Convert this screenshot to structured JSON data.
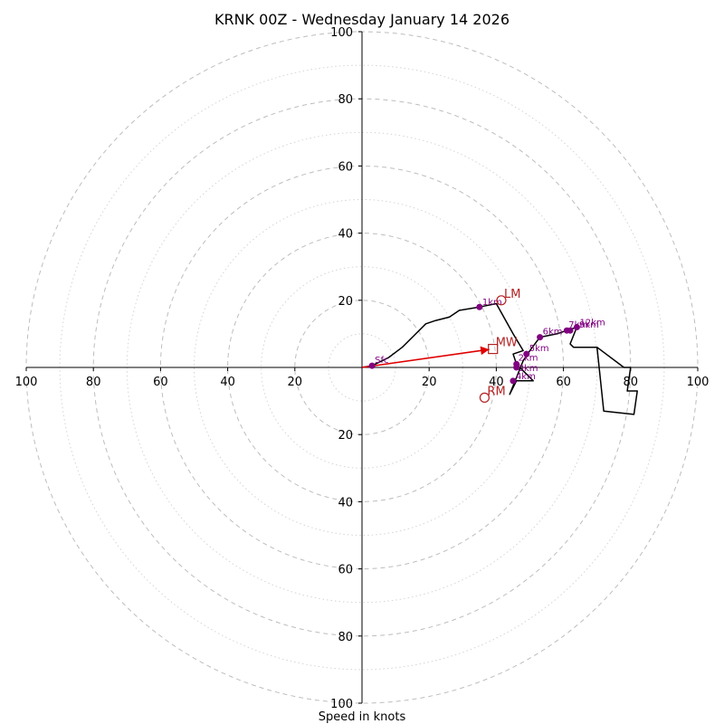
{
  "chart_data": {
    "type": "hodograph",
    "title": "KRNK 00Z - Wednesday January 14 2026",
    "xlabel": "Speed in knots",
    "rings": [
      20,
      40,
      60,
      80,
      100
    ],
    "minor_rings": [
      10,
      30,
      50,
      70,
      90
    ],
    "axis_range": [
      -100,
      100
    ],
    "ticks": {
      "left": [
        "100",
        "80",
        "60",
        "40",
        "20"
      ],
      "right": [
        "20",
        "40",
        "60",
        "80",
        "100"
      ],
      "top": [
        "100",
        "80",
        "60",
        "40",
        "20"
      ],
      "bottom": [
        "20",
        "40",
        "60",
        "80",
        "100"
      ]
    },
    "hodograph_trace": [
      [
        0,
        0
      ],
      [
        3,
        0.5
      ],
      [
        8,
        3
      ],
      [
        12,
        6
      ],
      [
        16,
        10
      ],
      [
        19,
        13
      ],
      [
        22,
        14
      ],
      [
        26,
        15
      ],
      [
        29,
        17
      ],
      [
        35,
        18
      ],
      [
        40,
        19
      ],
      [
        45,
        10
      ],
      [
        48,
        5
      ],
      [
        45,
        4
      ],
      [
        46,
        1
      ],
      [
        51,
        -4
      ],
      [
        46,
        -4
      ],
      [
        44,
        -8
      ],
      [
        46,
        -3
      ],
      [
        48,
        2
      ],
      [
        50,
        5
      ],
      [
        53,
        9
      ],
      [
        58,
        10
      ],
      [
        61,
        11
      ],
      [
        64,
        12
      ],
      [
        62,
        7
      ],
      [
        63,
        6
      ],
      [
        70,
        6
      ],
      [
        78,
        0
      ],
      [
        80,
        0
      ],
      [
        79,
        -7
      ],
      [
        82,
        -7
      ],
      [
        81,
        -14
      ],
      [
        72,
        -13
      ],
      [
        70,
        6
      ]
    ],
    "height_points": [
      {
        "label": "Sfc",
        "u": 3,
        "v": 0.5
      },
      {
        "label": "1km",
        "u": 35,
        "v": 18
      },
      {
        "label": "2km",
        "u": 46,
        "v": 1
      },
      {
        "label": "3km",
        "u": 46,
        "v": 0
      },
      {
        "label": "4km",
        "u": 45,
        "v": -4
      },
      {
        "label": "5km",
        "u": 49,
        "v": 4
      },
      {
        "label": "6km",
        "u": 53,
        "v": 9
      },
      {
        "label": "7km",
        "u": 61,
        "v": 11
      },
      {
        "label": "9km",
        "u": 62,
        "v": 11
      },
      {
        "label": "12km",
        "u": 64,
        "v": 12
      }
    ],
    "storm_motions": [
      {
        "label": "LM",
        "u": 41.5,
        "v": 20,
        "marker": "circle"
      },
      {
        "label": "RM",
        "u": 36.5,
        "v": -9,
        "marker": "circle"
      },
      {
        "label": "MW",
        "u": 39,
        "v": 5.5,
        "marker": "square"
      }
    ],
    "colors": {
      "trace": "#000000",
      "height_points": "#800080",
      "storm_motion": "#b22222",
      "mean_wind_arrow": "#e00000",
      "grid": "#bdbdbd"
    }
  }
}
